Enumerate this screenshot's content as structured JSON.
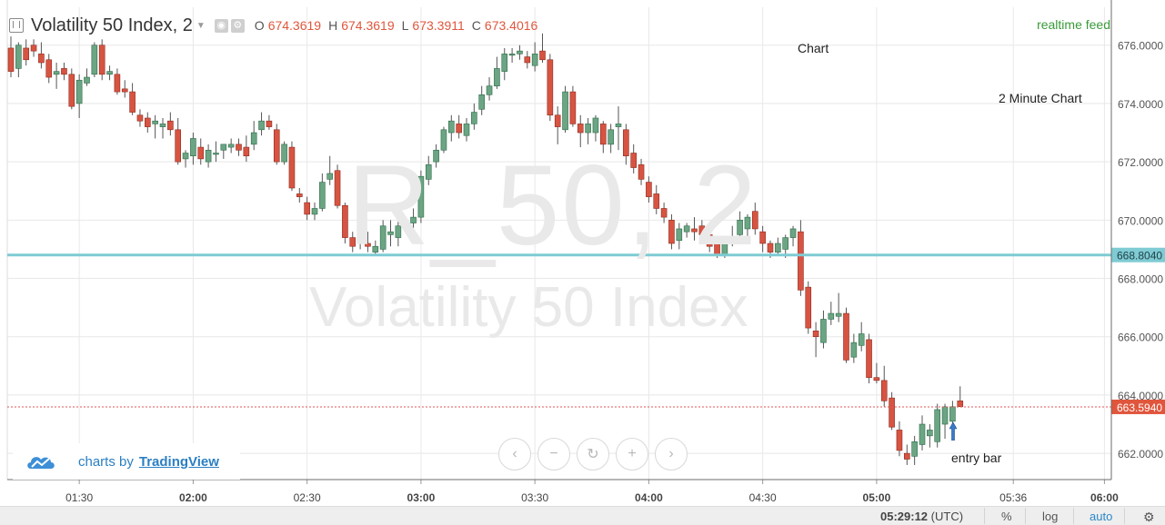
{
  "header": {
    "symbol_title": "Volatility 50 Index, 2",
    "ohlc": [
      {
        "key": "O",
        "value": "674.3619"
      },
      {
        "key": "H",
        "value": "674.3619"
      },
      {
        "key": "L",
        "value": "673.3911"
      },
      {
        "key": "C",
        "value": "673.4016"
      }
    ]
  },
  "overlay": {
    "realtime_feed": "realtime feed",
    "note_chart": "Chart",
    "note_timeframe": "2 Minute Chart",
    "note_entry": "entry bar",
    "watermark_symbol": "R_50, 2",
    "watermark_name": "Volatility 50 Index"
  },
  "branding": {
    "prefix": "charts by",
    "link": "TradingView"
  },
  "nav_buttons": [
    "‹",
    "−",
    "↻",
    "+",
    "›"
  ],
  "bottom": {
    "clock": "05:29:12",
    "timezone": "(UTC)",
    "percent": "%",
    "log": "log",
    "auto": "auto"
  },
  "colors": {
    "up": "#6ba583",
    "down": "#d75442",
    "hline": "#7fcbd4",
    "price_tag": "#e0563d"
  },
  "chart_data": {
    "type": "candlestick",
    "title": "Volatility 50 Index, 2",
    "y_ticks": [
      "676.0000",
      "674.0000",
      "672.0000",
      "670.0000",
      "668.0000",
      "666.0000",
      "664.0000",
      "662.0000"
    ],
    "ylim": [
      661.1,
      677.3
    ],
    "x_ticks": [
      "01:30",
      "02:00",
      "02:30",
      "03:00",
      "03:30",
      "04:00",
      "04:30",
      "05:00",
      "05:36",
      "06:00"
    ],
    "horizontal_line": {
      "value": 668.804,
      "label": "668.8040"
    },
    "last_price": {
      "value": 663.594,
      "label": "663.5940"
    },
    "candles": [
      {
        "o": 675.9,
        "h": 676.3,
        "l": 674.9,
        "c": 675.1
      },
      {
        "o": 675.2,
        "h": 676.1,
        "l": 674.9,
        "c": 676.0
      },
      {
        "o": 675.9,
        "h": 676.2,
        "l": 675.3,
        "c": 675.5
      },
      {
        "o": 676.0,
        "h": 676.2,
        "l": 675.6,
        "c": 675.8
      },
      {
        "o": 675.7,
        "h": 676.1,
        "l": 675.2,
        "c": 675.4
      },
      {
        "o": 675.5,
        "h": 675.7,
        "l": 674.7,
        "c": 674.9
      },
      {
        "o": 675.0,
        "h": 675.4,
        "l": 674.5,
        "c": 675.1
      },
      {
        "o": 675.2,
        "h": 675.4,
        "l": 674.8,
        "c": 675.0
      },
      {
        "o": 675.0,
        "h": 675.2,
        "l": 673.8,
        "c": 673.9
      },
      {
        "o": 674.0,
        "h": 675.0,
        "l": 673.5,
        "c": 674.8
      },
      {
        "o": 674.7,
        "h": 675.2,
        "l": 674.6,
        "c": 674.9
      },
      {
        "o": 675.0,
        "h": 676.1,
        "l": 674.9,
        "c": 676.0
      },
      {
        "o": 676.0,
        "h": 676.2,
        "l": 674.8,
        "c": 675.0
      },
      {
        "o": 675.0,
        "h": 675.3,
        "l": 674.8,
        "c": 675.1
      },
      {
        "o": 675.0,
        "h": 675.2,
        "l": 674.3,
        "c": 674.4
      },
      {
        "o": 674.5,
        "h": 674.8,
        "l": 674.2,
        "c": 674.4
      },
      {
        "o": 674.4,
        "h": 674.7,
        "l": 673.6,
        "c": 673.7
      },
      {
        "o": 673.6,
        "h": 673.8,
        "l": 673.2,
        "c": 673.4
      },
      {
        "o": 673.5,
        "h": 673.7,
        "l": 673.0,
        "c": 673.2
      },
      {
        "o": 673.3,
        "h": 673.6,
        "l": 672.8,
        "c": 673.4
      },
      {
        "o": 673.2,
        "h": 673.5,
        "l": 672.8,
        "c": 673.3
      },
      {
        "o": 673.4,
        "h": 673.7,
        "l": 672.9,
        "c": 673.1
      },
      {
        "o": 673.1,
        "h": 673.5,
        "l": 671.9,
        "c": 672.0
      },
      {
        "o": 672.1,
        "h": 672.4,
        "l": 671.8,
        "c": 672.3
      },
      {
        "o": 672.2,
        "h": 673.0,
        "l": 671.9,
        "c": 672.8
      },
      {
        "o": 672.5,
        "h": 672.8,
        "l": 671.9,
        "c": 672.1
      },
      {
        "o": 672.0,
        "h": 672.6,
        "l": 671.8,
        "c": 672.4
      },
      {
        "o": 672.3,
        "h": 672.7,
        "l": 672.0,
        "c": 672.3
      },
      {
        "o": 672.4,
        "h": 672.6,
        "l": 672.1,
        "c": 672.6
      },
      {
        "o": 672.5,
        "h": 672.8,
        "l": 672.3,
        "c": 672.6
      },
      {
        "o": 672.6,
        "h": 672.8,
        "l": 672.2,
        "c": 672.4
      },
      {
        "o": 672.5,
        "h": 672.9,
        "l": 672.0,
        "c": 672.2
      },
      {
        "o": 672.6,
        "h": 673.4,
        "l": 672.4,
        "c": 673.0
      },
      {
        "o": 673.1,
        "h": 673.7,
        "l": 672.9,
        "c": 673.4
      },
      {
        "o": 673.4,
        "h": 673.6,
        "l": 673.1,
        "c": 673.2
      },
      {
        "o": 673.1,
        "h": 673.3,
        "l": 671.9,
        "c": 672.0
      },
      {
        "o": 672.0,
        "h": 672.7,
        "l": 671.9,
        "c": 672.6
      },
      {
        "o": 672.5,
        "h": 672.7,
        "l": 671.0,
        "c": 671.1
      },
      {
        "o": 670.9,
        "h": 671.1,
        "l": 670.6,
        "c": 670.8
      },
      {
        "o": 670.6,
        "h": 670.8,
        "l": 670.0,
        "c": 670.2
      },
      {
        "o": 670.2,
        "h": 670.6,
        "l": 670.0,
        "c": 670.4
      },
      {
        "o": 670.4,
        "h": 671.6,
        "l": 670.3,
        "c": 671.3
      },
      {
        "o": 671.4,
        "h": 672.2,
        "l": 671.2,
        "c": 671.6
      },
      {
        "o": 671.7,
        "h": 671.9,
        "l": 670.4,
        "c": 670.5
      },
      {
        "o": 670.5,
        "h": 670.6,
        "l": 669.2,
        "c": 669.4
      },
      {
        "o": 669.4,
        "h": 669.6,
        "l": 668.9,
        "c": 669.1
      },
      {
        "o": 669.2,
        "h": 669.9,
        "l": 669.0,
        "c": 669.3
      },
      {
        "o": 669.2,
        "h": 669.6,
        "l": 668.9,
        "c": 669.1
      },
      {
        "o": 668.9,
        "h": 669.3,
        "l": 668.8,
        "c": 669.1
      },
      {
        "o": 669.0,
        "h": 670.0,
        "l": 668.9,
        "c": 669.8
      },
      {
        "o": 669.5,
        "h": 670.0,
        "l": 669.1,
        "c": 669.6
      },
      {
        "o": 669.4,
        "h": 670.2,
        "l": 669.1,
        "c": 669.8
      },
      {
        "o": 669.8,
        "h": 670.1,
        "l": 669.6,
        "c": 669.9
      },
      {
        "o": 669.9,
        "h": 670.4,
        "l": 669.7,
        "c": 670.1
      },
      {
        "o": 670.1,
        "h": 671.7,
        "l": 669.9,
        "c": 671.5
      },
      {
        "o": 671.4,
        "h": 672.2,
        "l": 671.2,
        "c": 671.9
      },
      {
        "o": 672.0,
        "h": 672.6,
        "l": 671.8,
        "c": 672.4
      },
      {
        "o": 672.4,
        "h": 673.2,
        "l": 672.3,
        "c": 673.1
      },
      {
        "o": 673.0,
        "h": 673.6,
        "l": 672.7,
        "c": 673.4
      },
      {
        "o": 673.3,
        "h": 673.6,
        "l": 672.8,
        "c": 673.0
      },
      {
        "o": 672.9,
        "h": 673.5,
        "l": 672.7,
        "c": 673.3
      },
      {
        "o": 673.3,
        "h": 674.0,
        "l": 673.1,
        "c": 673.7
      },
      {
        "o": 673.8,
        "h": 674.6,
        "l": 673.6,
        "c": 674.3
      },
      {
        "o": 674.3,
        "h": 674.9,
        "l": 674.1,
        "c": 674.6
      },
      {
        "o": 674.6,
        "h": 675.6,
        "l": 674.5,
        "c": 675.2
      },
      {
        "o": 675.1,
        "h": 675.9,
        "l": 674.8,
        "c": 675.7
      },
      {
        "o": 675.7,
        "h": 675.9,
        "l": 675.4,
        "c": 675.7
      },
      {
        "o": 675.7,
        "h": 676.0,
        "l": 675.5,
        "c": 675.8
      },
      {
        "o": 675.6,
        "h": 675.8,
        "l": 675.2,
        "c": 675.4
      },
      {
        "o": 675.3,
        "h": 676.1,
        "l": 675.1,
        "c": 675.7
      },
      {
        "o": 675.8,
        "h": 676.4,
        "l": 675.4,
        "c": 675.5
      },
      {
        "o": 675.5,
        "h": 675.7,
        "l": 673.4,
        "c": 673.6
      },
      {
        "o": 673.6,
        "h": 673.9,
        "l": 672.6,
        "c": 673.2
      },
      {
        "o": 673.1,
        "h": 674.6,
        "l": 673.0,
        "c": 674.4
      },
      {
        "o": 674.4,
        "h": 674.6,
        "l": 673.2,
        "c": 673.3
      },
      {
        "o": 673.3,
        "h": 673.6,
        "l": 672.5,
        "c": 673.0
      },
      {
        "o": 673.0,
        "h": 673.5,
        "l": 672.6,
        "c": 673.3
      },
      {
        "o": 673.0,
        "h": 673.6,
        "l": 672.7,
        "c": 673.5
      },
      {
        "o": 673.3,
        "h": 673.4,
        "l": 672.3,
        "c": 672.6
      },
      {
        "o": 672.6,
        "h": 673.3,
        "l": 672.3,
        "c": 673.1
      },
      {
        "o": 673.2,
        "h": 673.9,
        "l": 672.4,
        "c": 673.3
      },
      {
        "o": 673.1,
        "h": 673.3,
        "l": 671.9,
        "c": 672.2
      },
      {
        "o": 672.3,
        "h": 672.6,
        "l": 671.6,
        "c": 671.8
      },
      {
        "o": 671.9,
        "h": 672.1,
        "l": 671.2,
        "c": 671.4
      },
      {
        "o": 671.3,
        "h": 671.5,
        "l": 670.6,
        "c": 670.8
      },
      {
        "o": 670.9,
        "h": 671.2,
        "l": 670.2,
        "c": 670.4
      },
      {
        "o": 670.4,
        "h": 670.6,
        "l": 669.9,
        "c": 670.1
      },
      {
        "o": 670.0,
        "h": 670.2,
        "l": 669.0,
        "c": 669.2
      },
      {
        "o": 669.3,
        "h": 669.9,
        "l": 669.0,
        "c": 669.7
      },
      {
        "o": 669.6,
        "h": 669.9,
        "l": 669.4,
        "c": 669.8
      },
      {
        "o": 669.7,
        "h": 670.1,
        "l": 669.3,
        "c": 669.6
      },
      {
        "o": 669.8,
        "h": 670.0,
        "l": 669.2,
        "c": 669.5
      },
      {
        "o": 669.5,
        "h": 669.7,
        "l": 668.9,
        "c": 669.1
      },
      {
        "o": 669.2,
        "h": 669.4,
        "l": 668.7,
        "c": 668.8
      },
      {
        "o": 668.8,
        "h": 669.4,
        "l": 668.7,
        "c": 669.3
      },
      {
        "o": 669.3,
        "h": 669.8,
        "l": 669.1,
        "c": 669.4
      },
      {
        "o": 669.5,
        "h": 670.3,
        "l": 669.3,
        "c": 670.0
      },
      {
        "o": 669.7,
        "h": 670.2,
        "l": 669.3,
        "c": 670.1
      },
      {
        "o": 670.3,
        "h": 670.6,
        "l": 669.5,
        "c": 669.7
      },
      {
        "o": 669.6,
        "h": 669.8,
        "l": 668.9,
        "c": 669.2
      },
      {
        "o": 669.2,
        "h": 669.3,
        "l": 668.7,
        "c": 668.9
      },
      {
        "o": 668.9,
        "h": 669.4,
        "l": 668.8,
        "c": 669.2
      },
      {
        "o": 669.0,
        "h": 669.5,
        "l": 668.7,
        "c": 669.4
      },
      {
        "o": 669.4,
        "h": 669.8,
        "l": 669.1,
        "c": 669.7
      },
      {
        "o": 669.6,
        "h": 670.0,
        "l": 667.4,
        "c": 667.6
      },
      {
        "o": 667.7,
        "h": 667.9,
        "l": 666.1,
        "c": 666.3
      },
      {
        "o": 666.2,
        "h": 666.5,
        "l": 665.3,
        "c": 666.0
      },
      {
        "o": 665.8,
        "h": 666.9,
        "l": 665.6,
        "c": 666.6
      },
      {
        "o": 666.6,
        "h": 667.2,
        "l": 666.4,
        "c": 666.8
      },
      {
        "o": 666.7,
        "h": 667.5,
        "l": 666.5,
        "c": 666.8
      },
      {
        "o": 666.8,
        "h": 667.0,
        "l": 665.1,
        "c": 665.2
      },
      {
        "o": 665.3,
        "h": 666.1,
        "l": 665.1,
        "c": 665.8
      },
      {
        "o": 665.7,
        "h": 666.5,
        "l": 665.5,
        "c": 666.1
      },
      {
        "o": 665.9,
        "h": 666.1,
        "l": 664.4,
        "c": 664.6
      },
      {
        "o": 664.6,
        "h": 665.1,
        "l": 664.4,
        "c": 664.5
      },
      {
        "o": 664.5,
        "h": 665.0,
        "l": 663.6,
        "c": 663.8
      },
      {
        "o": 663.9,
        "h": 664.1,
        "l": 662.8,
        "c": 662.9
      },
      {
        "o": 662.8,
        "h": 663.1,
        "l": 661.9,
        "c": 662.1
      },
      {
        "o": 662.0,
        "h": 662.3,
        "l": 661.6,
        "c": 661.8
      },
      {
        "o": 661.9,
        "h": 662.6,
        "l": 661.6,
        "c": 662.4
      },
      {
        "o": 662.3,
        "h": 663.3,
        "l": 662.1,
        "c": 663.0
      },
      {
        "o": 662.6,
        "h": 663.0,
        "l": 662.2,
        "c": 662.8
      },
      {
        "o": 662.4,
        "h": 663.7,
        "l": 662.2,
        "c": 663.5
      },
      {
        "o": 663.0,
        "h": 663.7,
        "l": 662.5,
        "c": 663.6
      },
      {
        "o": 663.1,
        "h": 663.8,
        "l": 662.9,
        "c": 663.6
      },
      {
        "o": 663.8,
        "h": 664.3,
        "l": 663.6,
        "c": 663.6
      }
    ]
  }
}
